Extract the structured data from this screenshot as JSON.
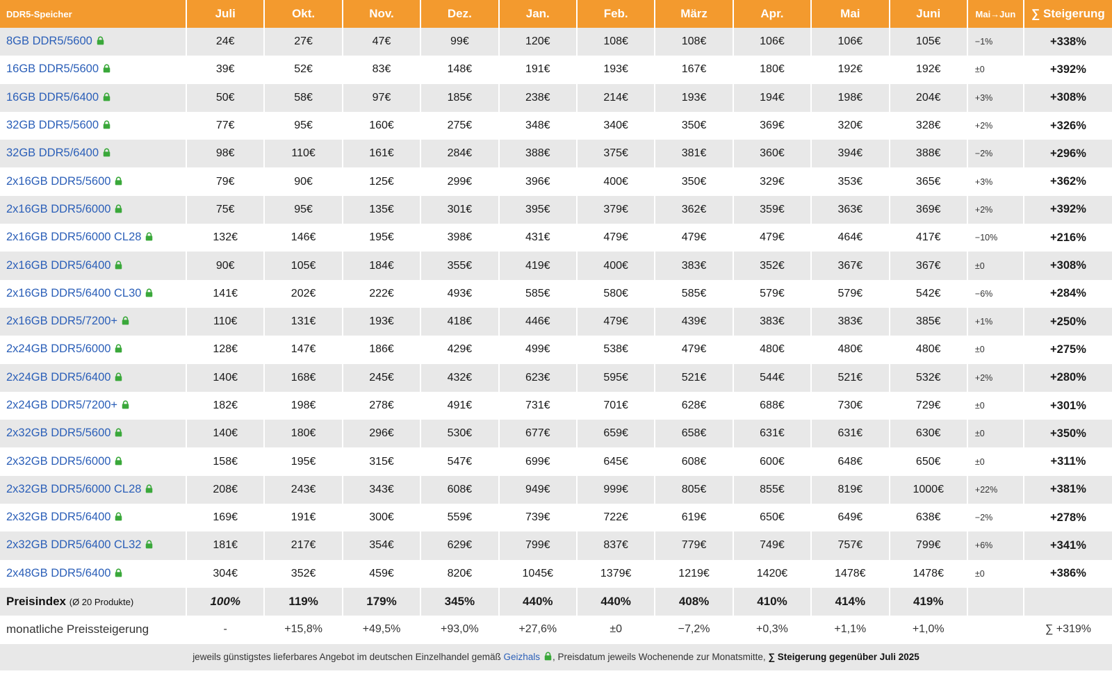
{
  "header": {
    "product_col": "DDR5-Speicher",
    "months": [
      "Juli",
      "Okt.",
      "Nov.",
      "Dez.",
      "Jan.",
      "Feb.",
      "März",
      "Apr.",
      "Mai",
      "Juni"
    ],
    "change_col": "Mai→Jun",
    "sum_col": "∑ Steigerung"
  },
  "rows": [
    {
      "name": "8GB DDR5/5600",
      "prices": [
        "24€",
        "27€",
        "47€",
        "99€",
        "120€",
        "108€",
        "108€",
        "106€",
        "106€",
        "105€"
      ],
      "change": "−1%",
      "total": "+338%"
    },
    {
      "name": "16GB DDR5/5600",
      "prices": [
        "39€",
        "52€",
        "83€",
        "148€",
        "191€",
        "193€",
        "167€",
        "180€",
        "192€",
        "192€"
      ],
      "change": "±0",
      "total": "+392%"
    },
    {
      "name": "16GB DDR5/6400",
      "prices": [
        "50€",
        "58€",
        "97€",
        "185€",
        "238€",
        "214€",
        "193€",
        "194€",
        "198€",
        "204€"
      ],
      "change": "+3%",
      "total": "+308%"
    },
    {
      "name": "32GB DDR5/5600",
      "prices": [
        "77€",
        "95€",
        "160€",
        "275€",
        "348€",
        "340€",
        "350€",
        "369€",
        "320€",
        "328€"
      ],
      "change": "+2%",
      "total": "+326%"
    },
    {
      "name": "32GB DDR5/6400",
      "prices": [
        "98€",
        "110€",
        "161€",
        "284€",
        "388€",
        "375€",
        "381€",
        "360€",
        "394€",
        "388€"
      ],
      "change": "−2%",
      "total": "+296%"
    },
    {
      "name": "2x16GB DDR5/5600",
      "prices": [
        "79€",
        "90€",
        "125€",
        "299€",
        "396€",
        "400€",
        "350€",
        "329€",
        "353€",
        "365€"
      ],
      "change": "+3%",
      "total": "+362%"
    },
    {
      "name": "2x16GB DDR5/6000",
      "prices": [
        "75€",
        "95€",
        "135€",
        "301€",
        "395€",
        "379€",
        "362€",
        "359€",
        "363€",
        "369€"
      ],
      "change": "+2%",
      "total": "+392%"
    },
    {
      "name": "2x16GB DDR5/6000 CL28",
      "prices": [
        "132€",
        "146€",
        "195€",
        "398€",
        "431€",
        "479€",
        "479€",
        "479€",
        "464€",
        "417€"
      ],
      "change": "−10%",
      "total": "+216%"
    },
    {
      "name": "2x16GB DDR5/6400",
      "prices": [
        "90€",
        "105€",
        "184€",
        "355€",
        "419€",
        "400€",
        "383€",
        "352€",
        "367€",
        "367€"
      ],
      "change": "±0",
      "total": "+308%"
    },
    {
      "name": "2x16GB DDR5/6400 CL30",
      "prices": [
        "141€",
        "202€",
        "222€",
        "493€",
        "585€",
        "580€",
        "585€",
        "579€",
        "579€",
        "542€"
      ],
      "change": "−6%",
      "total": "+284%"
    },
    {
      "name": "2x16GB DDR5/7200+",
      "prices": [
        "110€",
        "131€",
        "193€",
        "418€",
        "446€",
        "479€",
        "439€",
        "383€",
        "383€",
        "385€"
      ],
      "change": "+1%",
      "total": "+250%"
    },
    {
      "name": "2x24GB DDR5/6000",
      "prices": [
        "128€",
        "147€",
        "186€",
        "429€",
        "499€",
        "538€",
        "479€",
        "480€",
        "480€",
        "480€"
      ],
      "change": "±0",
      "total": "+275%"
    },
    {
      "name": "2x24GB DDR5/6400",
      "prices": [
        "140€",
        "168€",
        "245€",
        "432€",
        "623€",
        "595€",
        "521€",
        "544€",
        "521€",
        "532€"
      ],
      "change": "+2%",
      "total": "+280%"
    },
    {
      "name": "2x24GB DDR5/7200+",
      "prices": [
        "182€",
        "198€",
        "278€",
        "491€",
        "731€",
        "701€",
        "628€",
        "688€",
        "730€",
        "729€"
      ],
      "change": "±0",
      "total": "+301%"
    },
    {
      "name": "2x32GB DDR5/5600",
      "prices": [
        "140€",
        "180€",
        "296€",
        "530€",
        "677€",
        "659€",
        "658€",
        "631€",
        "631€",
        "630€"
      ],
      "change": "±0",
      "total": "+350%"
    },
    {
      "name": "2x32GB DDR5/6000",
      "prices": [
        "158€",
        "195€",
        "315€",
        "547€",
        "699€",
        "645€",
        "608€",
        "600€",
        "648€",
        "650€"
      ],
      "change": "±0",
      "total": "+311%"
    },
    {
      "name": "2x32GB DDR5/6000 CL28",
      "prices": [
        "208€",
        "243€",
        "343€",
        "608€",
        "949€",
        "999€",
        "805€",
        "855€",
        "819€",
        "1000€"
      ],
      "change": "+22%",
      "total": "+381%"
    },
    {
      "name": "2x32GB DDR5/6400",
      "prices": [
        "169€",
        "191€",
        "300€",
        "559€",
        "739€",
        "722€",
        "619€",
        "650€",
        "649€",
        "638€"
      ],
      "change": "−2%",
      "total": "+278%"
    },
    {
      "name": "2x32GB DDR5/6400 CL32",
      "prices": [
        "181€",
        "217€",
        "354€",
        "629€",
        "799€",
        "837€",
        "779€",
        "749€",
        "757€",
        "799€"
      ],
      "change": "+6%",
      "total": "+341%"
    },
    {
      "name": "2x48GB DDR5/6400",
      "prices": [
        "304€",
        "352€",
        "459€",
        "820€",
        "1045€",
        "1379€",
        "1219€",
        "1420€",
        "1478€",
        "1478€"
      ],
      "change": "±0",
      "total": "+386%"
    }
  ],
  "index_row": {
    "label": "Preisindex",
    "sublabel": "(Ø 20 Produkte)",
    "values": [
      "100%",
      "119%",
      "179%",
      "345%",
      "440%",
      "440%",
      "408%",
      "410%",
      "414%",
      "419%"
    ],
    "change": "",
    "total": ""
  },
  "monthly_row": {
    "label": "monatliche Preissteigerung",
    "values": [
      "-",
      "+15,8%",
      "+49,5%",
      "+93,0%",
      "+27,6%",
      "±0",
      "−7,2%",
      "+0,3%",
      "+1,1%",
      "+1,0%"
    ],
    "change": "",
    "total": "∑ +319%"
  },
  "footer": {
    "text_before": "jeweils günstigstes lieferbares Angebot im deutschen Einzelhandel gemäß ",
    "link": "Geizhals",
    "text_after": ", Preisdatum jeweils Wochenende zur Monatsmitte, ",
    "bold": "∑ Steigerung gegenüber Juli 2025"
  },
  "colors": {
    "header_bg": "#f39a2e",
    "link": "#2b5fb8",
    "lock_icon": "#3aa83a",
    "stripe": "#e8e8e8"
  },
  "icons": {
    "shop_link": "lock-icon"
  }
}
